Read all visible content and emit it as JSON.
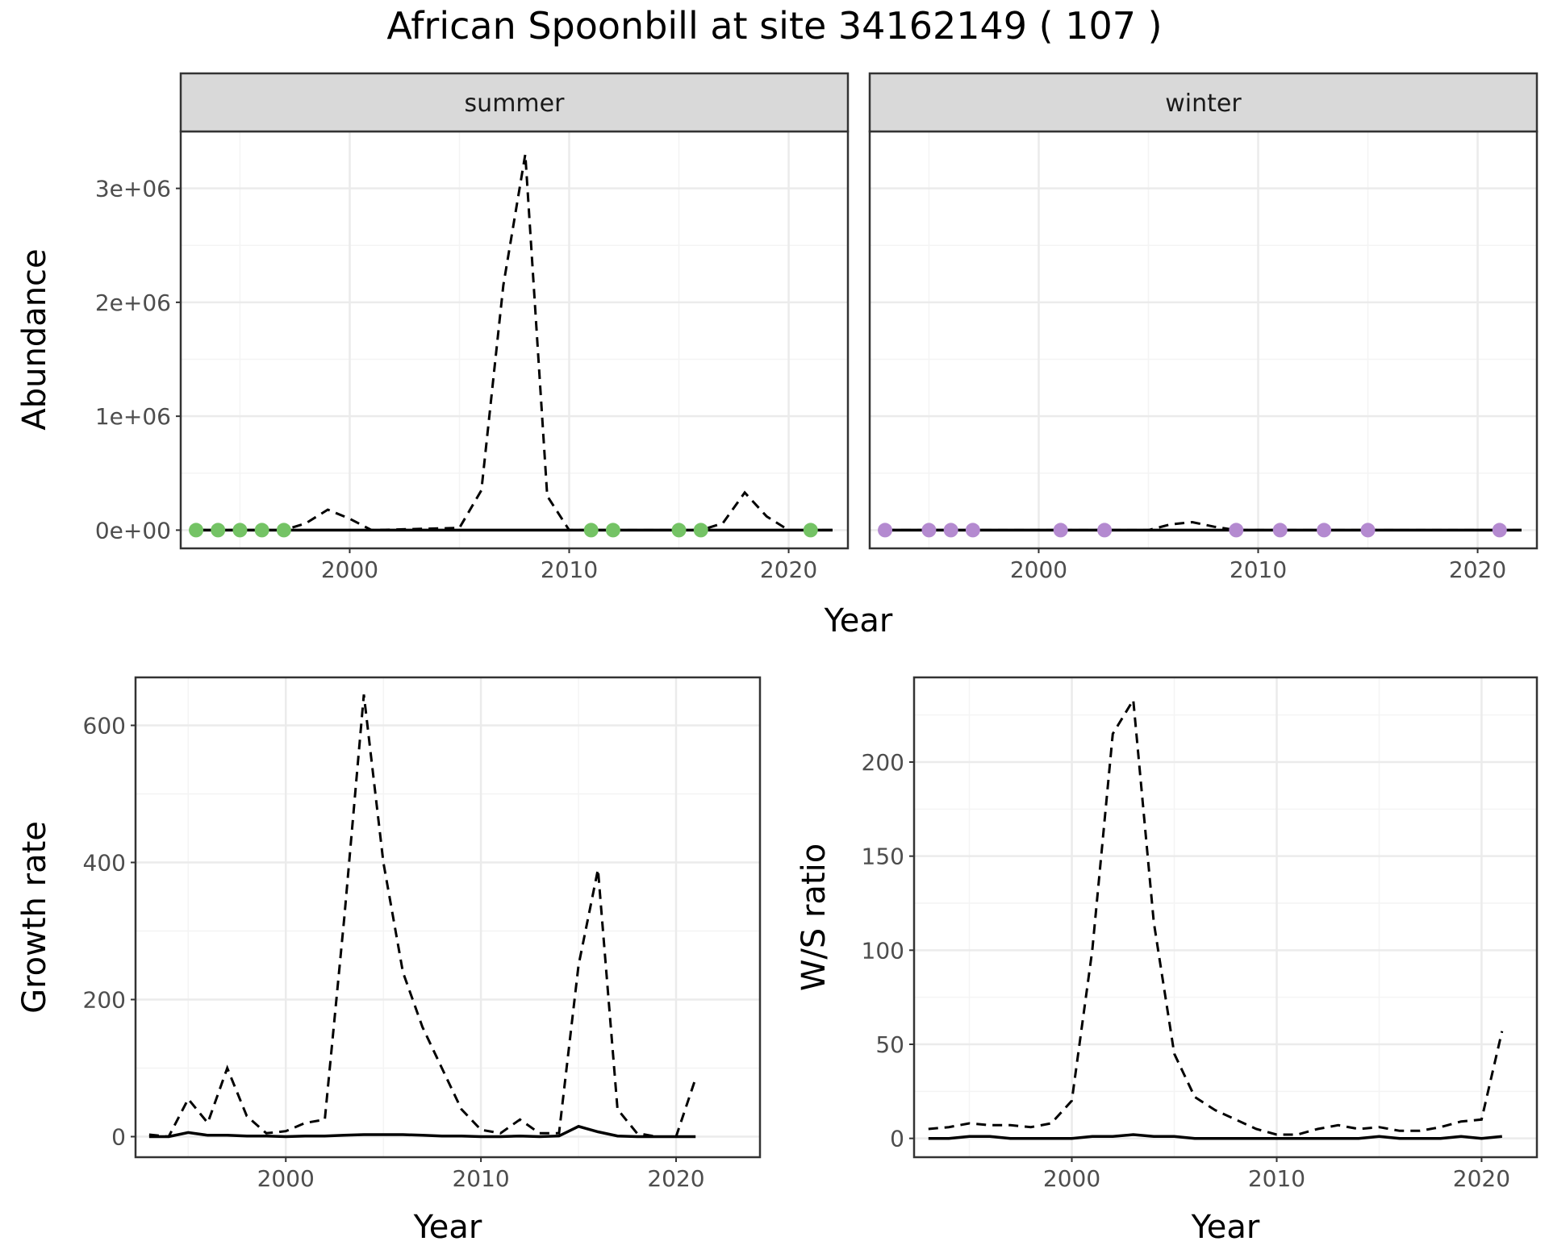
{
  "title": "African Spoonbill at site 34162149 ( 107 )",
  "colors": {
    "summer_points": "#74c365",
    "winter_points": "#b48ad0",
    "lines": "#000000",
    "grid_major": "#ebebeb",
    "grid_minor": "#f4f4f4",
    "strip_bg": "#d9d9d9",
    "frame": "#333333"
  },
  "chart_data": [
    {
      "type": "line",
      "facets": [
        "summer",
        "winter"
      ],
      "xlabel": "Year",
      "ylabel": "Abundance",
      "xlim": [
        1992.3,
        2022.7
      ],
      "ylim": [
        -160000,
        3500000
      ],
      "x_ticks": [
        2000,
        2010,
        2020
      ],
      "x_tick_labels": [
        "2000",
        "2010",
        "2020"
      ],
      "y_ticks": [
        0,
        1000000,
        2000000,
        3000000
      ],
      "y_tick_labels": [
        "0e+00",
        "1e+06",
        "2e+06",
        "3e+06"
      ],
      "grid": true,
      "panels": [
        {
          "facet": "summer",
          "solid_line": {
            "x": [
              1993,
              2022
            ],
            "y": [
              0,
              0
            ]
          },
          "dashed_line": {
            "x": [
              1993,
              1997,
              1998,
              1999,
              2000,
              2001,
              2005,
              2006,
              2007,
              2008,
              2009,
              2010,
              2016,
              2017,
              2018,
              2019,
              2020,
              2021,
              2022
            ],
            "y": [
              0,
              0,
              60000,
              180000,
              100000,
              0,
              20000,
              350000,
              2150000,
              3300000,
              300000,
              0,
              0,
              60000,
              330000,
              120000,
              0,
              0,
              0
            ]
          },
          "points": {
            "x": [
              1993,
              1994,
              1995,
              1996,
              1997,
              2011,
              2012,
              2015,
              2016,
              2021
            ],
            "y": [
              0,
              0,
              0,
              0,
              0,
              0,
              0,
              0,
              0,
              0
            ]
          }
        },
        {
          "facet": "winter",
          "solid_line": {
            "x": [
              1993,
              2022
            ],
            "y": [
              0,
              0
            ]
          },
          "dashed_line": {
            "x": [
              1993,
              2005,
              2006,
              2007,
              2008,
              2009,
              2022
            ],
            "y": [
              0,
              0,
              50000,
              70000,
              30000,
              0,
              0
            ]
          },
          "points": {
            "x": [
              1993,
              1995,
              1996,
              1997,
              2001,
              2003,
              2009,
              2011,
              2013,
              2015,
              2021
            ],
            "y": [
              0,
              0,
              0,
              0,
              0,
              0,
              0,
              0,
              0,
              0,
              0
            ]
          }
        }
      ]
    },
    {
      "type": "line",
      "xlabel": "Year",
      "ylabel": "Growth rate",
      "xlim": [
        1992.3,
        2024.3
      ],
      "ylim": [
        -30,
        670
      ],
      "x_ticks": [
        2000,
        2010,
        2020
      ],
      "x_tick_labels": [
        "2000",
        "2010",
        "2020"
      ],
      "y_ticks": [
        0,
        200,
        400,
        600
      ],
      "y_tick_labels": [
        "0",
        "200",
        "400",
        "600"
      ],
      "grid": true,
      "series": [
        {
          "style": "dashed",
          "x": [
            1993,
            1994,
            1995,
            1996,
            1997,
            1998,
            1999,
            2000,
            2001,
            2002,
            2003,
            2004,
            2005,
            2006,
            2007,
            2008,
            2009,
            2010,
            2011,
            2012,
            2013,
            2014,
            2015,
            2016,
            2017,
            2018,
            2019,
            2020,
            2021
          ],
          "y": [
            3,
            0,
            55,
            20,
            100,
            30,
            5,
            8,
            20,
            25,
            320,
            645,
            400,
            240,
            160,
            100,
            40,
            10,
            5,
            25,
            5,
            5,
            250,
            390,
            40,
            5,
            0,
            0,
            85
          ]
        },
        {
          "style": "solid",
          "x": [
            1993,
            1994,
            1995,
            1996,
            1997,
            1998,
            1999,
            2000,
            2001,
            2002,
            2003,
            2004,
            2005,
            2006,
            2007,
            2008,
            2009,
            2010,
            2011,
            2012,
            2013,
            2014,
            2015,
            2016,
            2017,
            2018,
            2019,
            2020,
            2021
          ],
          "y": [
            0,
            0,
            6,
            2,
            2,
            1,
            1,
            0,
            1,
            1,
            2,
            3,
            3,
            3,
            2,
            1,
            1,
            0,
            0,
            1,
            0,
            1,
            15,
            7,
            1,
            0,
            0,
            0,
            0
          ]
        }
      ]
    },
    {
      "type": "line",
      "xlabel": "Year",
      "ylabel": "W/S ratio",
      "xlim": [
        1992.3,
        2022.7
      ],
      "ylim": [
        -10,
        245
      ],
      "x_ticks": [
        2000,
        2010,
        2020
      ],
      "x_tick_labels": [
        "2000",
        "2010",
        "2020"
      ],
      "y_ticks": [
        0,
        50,
        100,
        150,
        200
      ],
      "y_tick_labels": [
        "0",
        "50",
        "100",
        "150",
        "200"
      ],
      "grid": true,
      "series": [
        {
          "style": "dashed",
          "x": [
            1993,
            1994,
            1995,
            1996,
            1997,
            1998,
            1999,
            2000,
            2001,
            2002,
            2003,
            2004,
            2005,
            2006,
            2007,
            2008,
            2009,
            2010,
            2011,
            2012,
            2013,
            2014,
            2015,
            2016,
            2017,
            2018,
            2019,
            2020,
            2021
          ],
          "y": [
            5,
            6,
            8,
            7,
            7,
            6,
            8,
            20,
            100,
            215,
            233,
            115,
            45,
            22,
            15,
            10,
            5,
            2,
            2,
            5,
            7,
            5,
            6,
            4,
            4,
            6,
            9,
            10,
            57
          ]
        },
        {
          "style": "solid",
          "x": [
            1993,
            1994,
            1995,
            1996,
            1997,
            1998,
            1999,
            2000,
            2001,
            2002,
            2003,
            2004,
            2005,
            2006,
            2007,
            2008,
            2009,
            2010,
            2011,
            2012,
            2013,
            2014,
            2015,
            2016,
            2017,
            2018,
            2019,
            2020,
            2021
          ],
          "y": [
            0,
            0,
            1,
            1,
            0,
            0,
            0,
            0,
            1,
            1,
            2,
            1,
            1,
            0,
            0,
            0,
            0,
            0,
            0,
            0,
            0,
            0,
            1,
            0,
            0,
            0,
            1,
            0,
            1
          ]
        }
      ]
    }
  ]
}
